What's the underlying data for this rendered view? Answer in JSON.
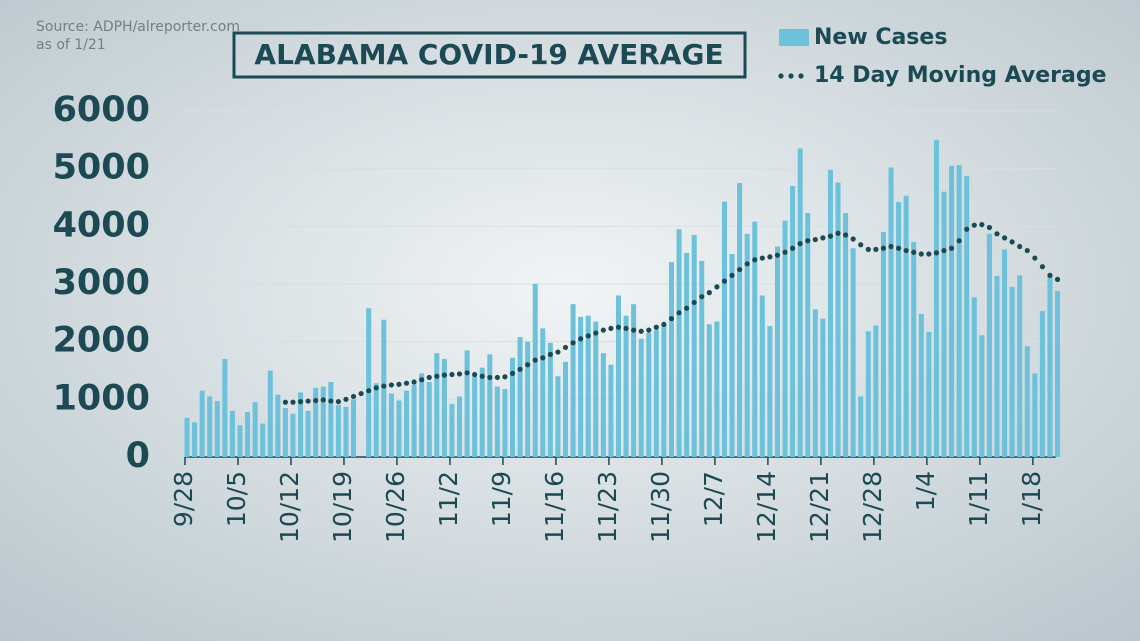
{
  "chart_data": {
    "type": "bar",
    "title": "ALABAMA COVID-19 AVERAGE",
    "source": [
      "Source: ADPH/alreporter.com",
      "as of 1/21"
    ],
    "categories": [
      "9/28",
      null,
      null,
      null,
      null,
      null,
      null,
      "10/5",
      null,
      null,
      null,
      null,
      null,
      null,
      "10/12",
      null,
      null,
      null,
      null,
      null,
      null,
      "10/19",
      null,
      null,
      null,
      null,
      null,
      null,
      "10/26",
      null,
      null,
      null,
      null,
      null,
      null,
      "11/2",
      null,
      null,
      null,
      null,
      null,
      null,
      "11/9",
      null,
      null,
      null,
      null,
      null,
      null,
      "11/16",
      null,
      null,
      null,
      null,
      null,
      null,
      "11/23",
      null,
      null,
      null,
      null,
      null,
      null,
      "11/30",
      null,
      null,
      null,
      null,
      null,
      null,
      "12/7",
      null,
      null,
      null,
      null,
      null,
      null,
      "12/14",
      null,
      null,
      null,
      null,
      null,
      null,
      "12/21",
      null,
      null,
      null,
      null,
      null,
      null,
      "12/28",
      null,
      null,
      null,
      null,
      null,
      null,
      "1/4",
      null,
      null,
      null,
      null,
      null,
      null,
      "1/11",
      null,
      null,
      null,
      null,
      null,
      null,
      "1/18",
      null,
      null,
      null
    ],
    "series": [
      {
        "name": "New Cases",
        "color": "#6cc1db",
        "type": "bar",
        "values": [
          680,
          600,
          1150,
          1050,
          970,
          1700,
          800,
          550,
          780,
          950,
          580,
          1500,
          1080,
          850,
          750,
          1120,
          800,
          1200,
          1220,
          1300,
          900,
          870,
          1000,
          null,
          2580,
          1280,
          2380,
          1100,
          980,
          1150,
          1250,
          1450,
          1300,
          1800,
          1700,
          920,
          1050,
          1850,
          1400,
          1550,
          1780,
          1220,
          1180,
          1720,
          2080,
          2000,
          3000,
          2230,
          1980,
          1400,
          1650,
          2650,
          2430,
          2450,
          2350,
          1800,
          1600,
          2800,
          2450,
          2650,
          2050,
          2150,
          2200,
          2300,
          3380,
          3950,
          3540,
          3850,
          3400,
          2300,
          2350,
          4430,
          3520,
          4750,
          3870,
          4080,
          2800,
          2270,
          3650,
          4100,
          4700,
          5350,
          4230,
          2560,
          2400,
          4980,
          4760,
          4230,
          3620,
          1050,
          2180,
          2280,
          3900,
          5020,
          4420,
          4530,
          3730,
          2480,
          2170,
          5500,
          4600,
          5050,
          5060,
          4870,
          2770,
          2110,
          3870,
          3140,
          3600,
          2950,
          3150,
          1920,
          1450,
          2530,
          3120,
          2880
        ]
      },
      {
        "name": "14 Day Moving Average",
        "color": "#1b4954",
        "type": "dotted-line",
        "values": [
          null,
          null,
          null,
          null,
          null,
          null,
          null,
          null,
          null,
          null,
          null,
          null,
          null,
          950,
          950,
          960,
          970,
          980,
          990,
          970,
          960,
          1000,
          1050,
          1100,
          1150,
          1200,
          1230,
          1250,
          1260,
          1280,
          1300,
          1340,
          1380,
          1400,
          1420,
          1430,
          1440,
          1460,
          1430,
          1400,
          1380,
          1380,
          1390,
          1450,
          1520,
          1600,
          1680,
          1720,
          1780,
          1820,
          1900,
          1980,
          2050,
          2100,
          2150,
          2200,
          2230,
          2250,
          2230,
          2200,
          2180,
          2200,
          2250,
          2300,
          2400,
          2500,
          2580,
          2680,
          2780,
          2850,
          2950,
          3050,
          3150,
          3250,
          3350,
          3420,
          3450,
          3470,
          3500,
          3550,
          3620,
          3700,
          3750,
          3770,
          3800,
          3830,
          3880,
          3850,
          3780,
          3680,
          3600,
          3600,
          3620,
          3650,
          3620,
          3580,
          3550,
          3520,
          3520,
          3540,
          3580,
          3620,
          3750,
          3950,
          4020,
          4030,
          3980,
          3870,
          3800,
          3730,
          3650,
          3580,
          3450,
          3300,
          3150,
          3080
        ]
      }
    ],
    "ylim": [
      0,
      6000
    ],
    "yticks": [
      0,
      1000,
      2000,
      3000,
      4000,
      5000,
      6000
    ],
    "grid": true
  }
}
